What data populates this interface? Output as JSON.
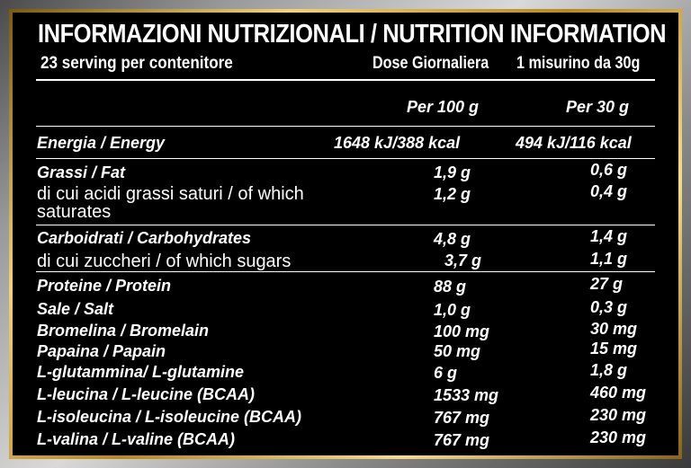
{
  "title": "INFORMAZIONI NUTRIZIONALI / NUTRITION INFORMATION",
  "subtitle": {
    "servings": "23 serving per contenitore",
    "dose_label": "Dose Giornaliera",
    "dose_value": "1 misurino da 30g"
  },
  "columns": {
    "per100": "Per 100 g",
    "per30": "Per 30 g"
  },
  "rows": [
    {
      "label": "Energia / Energy",
      "v100": "1648 kJ/388 kcal",
      "v30": "494 kJ/116 kcal"
    },
    {
      "label": "Grassi / Fat",
      "v100": "1,9 g",
      "v30": "0,6 g"
    },
    {
      "label_line1": "di cui acidi grassi saturi / of which",
      "label_line2": "saturates",
      "v100": "1,2 g",
      "v30": "0,4 g"
    },
    {
      "label": "Carboidrati / Carbohydrates",
      "v100": "4,8 g",
      "v30": "1,4 g"
    },
    {
      "label": "di cui zuccheri / of which sugars",
      "v100": "3,7 g",
      "v30": "1,1 g"
    },
    {
      "label": "Proteine / Protein",
      "v100": "88 g",
      "v30": "27 g"
    },
    {
      "label": "Sale / Salt",
      "v100": "1,0 g",
      "v30": "0,3 g"
    },
    {
      "label": "Bromelina / Bromelain",
      "v100": "100 mg",
      "v30": "30 mg"
    },
    {
      "label": "Papaina / Papain",
      "v100": "50 mg",
      "v30": "15 mg"
    },
    {
      "label": "L-glutammina/ L-glutamine",
      "v100": "6 g",
      "v30": "1,8 g"
    },
    {
      "label": "L-leucina / L-leucine (BCAA)",
      "v100": "1533 mg",
      "v30": "460 mg"
    },
    {
      "label": "L-isoleucina / L-isoleucine (BCAA)",
      "v100": "767 mg",
      "v30": "230 mg"
    },
    {
      "label": "L-valina / L-valine (BCAA)",
      "v100": "767 mg",
      "v30": "230 mg"
    }
  ],
  "colors": {
    "background": "#000000",
    "text": "#ffffff",
    "frame_gold": "#d4af37",
    "frame_silver": "#b0b0b0"
  }
}
